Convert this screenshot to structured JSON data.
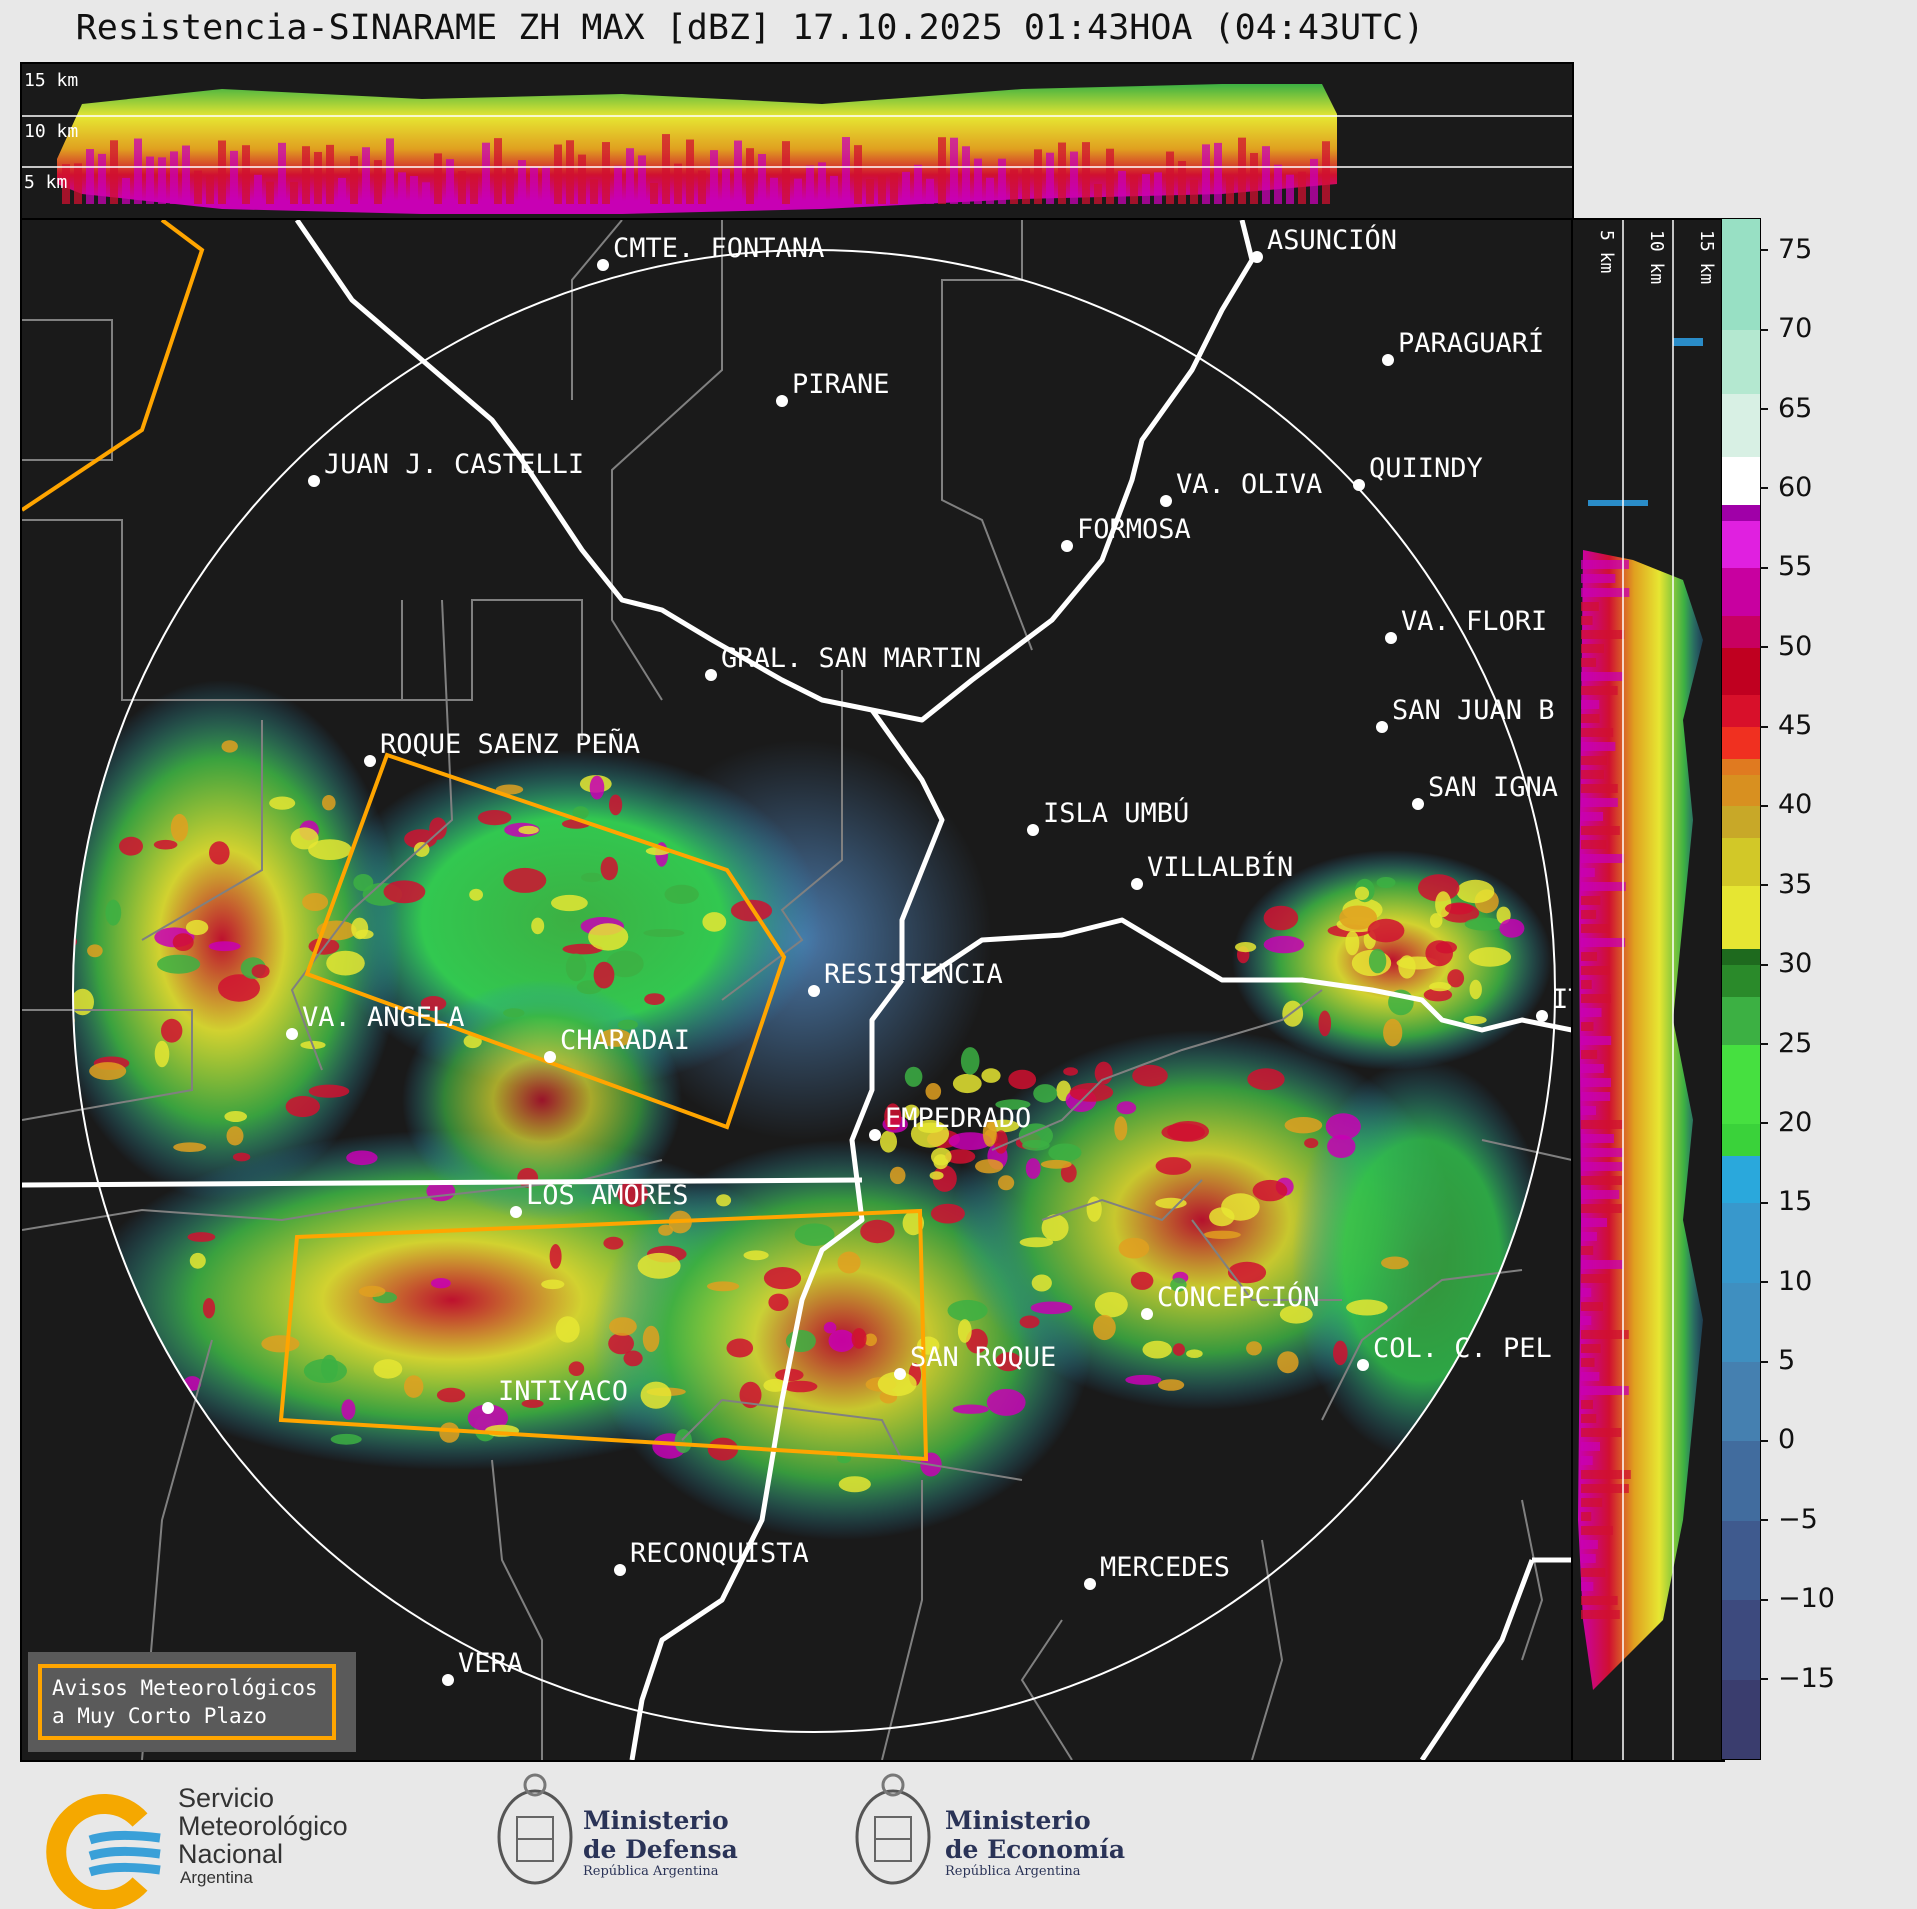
{
  "title": "Resistencia-SINARAME ZH MAX [dBZ] 17.10.2025 01:43HOA (04:43UTC)",
  "top_strip": {
    "height_labels": [
      "15 km",
      "10 km",
      "5 km"
    ]
  },
  "side_strip": {
    "height_labels": [
      "5 km",
      "10 km",
      "15 km"
    ]
  },
  "colorbar": {
    "unit": "dBZ",
    "range": [
      -20,
      77
    ],
    "ticks": [
      "75",
      "70",
      "65",
      "60",
      "55",
      "50",
      "45",
      "40",
      "35",
      "30",
      "25",
      "20",
      "15",
      "10",
      "5",
      "0",
      "−5",
      "−10",
      "−15"
    ]
  },
  "places": [
    {
      "name": "CMTE. FONTANA"
    },
    {
      "name": "ASUNCIÓN"
    },
    {
      "name": "PIRANE"
    },
    {
      "name": "PARAGUARÍ"
    },
    {
      "name": "JUAN J. CASTELLI"
    },
    {
      "name": "VA. OLIVA"
    },
    {
      "name": "QUIINDY"
    },
    {
      "name": "FORMOSA"
    },
    {
      "name": "VA. FLORI"
    },
    {
      "name": "GRAL. SAN MARTIN"
    },
    {
      "name": "SAN JUAN B"
    },
    {
      "name": "ROQUE SAENZ PEÑA"
    },
    {
      "name": "SAN IGNA"
    },
    {
      "name": "ISLA UMBÚ"
    },
    {
      "name": "VILLALBÍN"
    },
    {
      "name": "RESISTENCIA"
    },
    {
      "name": "VA. ANGELA"
    },
    {
      "name": "CHARADAI"
    },
    {
      "name": "IT"
    },
    {
      "name": "EMPEDRADO"
    },
    {
      "name": "LOS AMORES"
    },
    {
      "name": "CONCEPCIÓN"
    },
    {
      "name": "COL. C. PEL"
    },
    {
      "name": "SAN ROQUE"
    },
    {
      "name": "INTIYACO"
    },
    {
      "name": "RECONQUISTA"
    },
    {
      "name": "MERCEDES"
    },
    {
      "name": "VERA"
    }
  ],
  "warning_box": {
    "line1": "Avisos Meteorológicos",
    "line2": "a Muy Corto Plazo"
  },
  "footer": {
    "smn": {
      "line1": "Servicio",
      "line2": "Meteorológico",
      "line3": "Nacional",
      "line4": "Argentina"
    },
    "defensa": {
      "line1": "Ministerio",
      "line2": "de Defensa",
      "line3": "República Argentina"
    },
    "economia": {
      "line1": "Ministerio",
      "line2": "de Economía",
      "line3": "República Argentina"
    }
  },
  "colors": {
    "warning_polygon": "#ffa500",
    "border": "#ffffff",
    "province_lines": "#808080",
    "background": "#1a1a1a"
  }
}
